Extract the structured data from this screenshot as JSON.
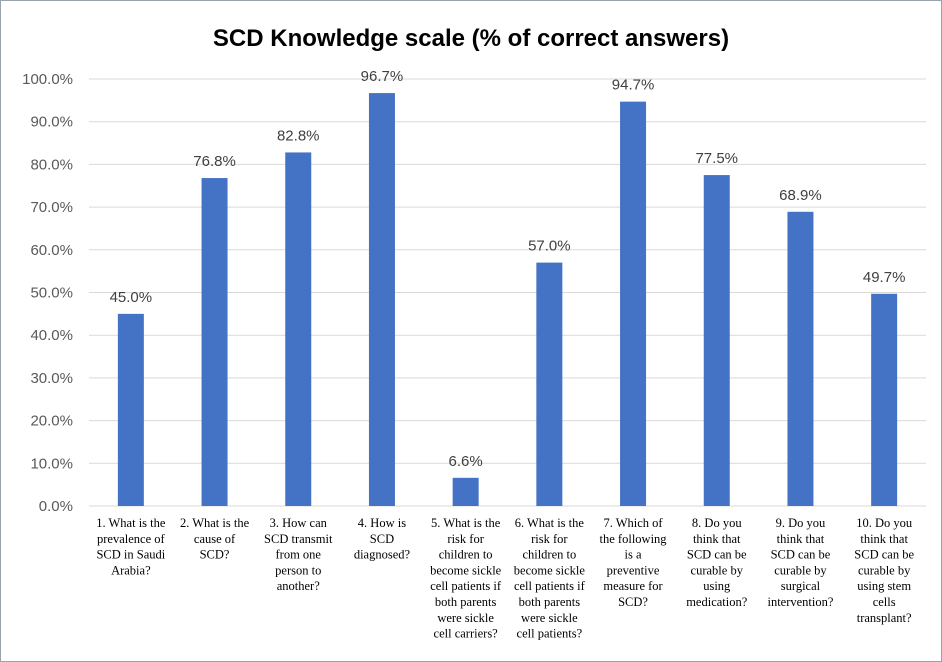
{
  "chart_data": {
    "type": "bar",
    "title": "SCD Knowledge scale (% of correct answers)",
    "xlabel": "",
    "ylabel": "",
    "ylim": [
      0,
      100
    ],
    "yticks": [
      "0.0%",
      "10.0%",
      "20.0%",
      "30.0%",
      "40.0%",
      "50.0%",
      "60.0%",
      "70.0%",
      "80.0%",
      "90.0%",
      "100.0%"
    ],
    "grid": true,
    "legend": "none",
    "bar_color": "#4472C4",
    "categories": [
      [
        "1. What is the",
        "prevalence of",
        "SCD in Saudi",
        "Arabia?"
      ],
      [
        "2. What is the",
        "cause of",
        "SCD?"
      ],
      [
        "3. How can",
        "SCD transmit",
        "from one",
        "person to",
        "another?"
      ],
      [
        "4. How is",
        "SCD",
        "diagnosed?"
      ],
      [
        "5. What is the",
        "risk for",
        "children to",
        "become sickle",
        "cell patients if",
        "both parents",
        "were sickle",
        "cell carriers?"
      ],
      [
        "6. What is the",
        "risk for",
        "children to",
        "become sickle",
        "cell patients if",
        "both parents",
        "were sickle",
        "cell patients?"
      ],
      [
        "7. Which of",
        "the following",
        "is a",
        "preventive",
        "measure for",
        "SCD?"
      ],
      [
        "8. Do you",
        "think that",
        "SCD can be",
        "curable by",
        "using",
        "medication?"
      ],
      [
        "9. Do you",
        "think that",
        "SCD can be",
        "curable by",
        "surgical",
        "intervention?"
      ],
      [
        "10. Do you",
        "think that",
        "SCD can be",
        "curable by",
        "using stem",
        "cells",
        "transplant?"
      ]
    ],
    "values": [
      45.0,
      76.8,
      82.8,
      96.7,
      6.6,
      57.0,
      94.7,
      77.5,
      68.9,
      49.7
    ],
    "data_labels": [
      "45.0%",
      "76.8%",
      "82.8%",
      "96.7%",
      "6.6%",
      "57.0%",
      "94.7%",
      "77.5%",
      "68.9%",
      "49.7%"
    ]
  }
}
